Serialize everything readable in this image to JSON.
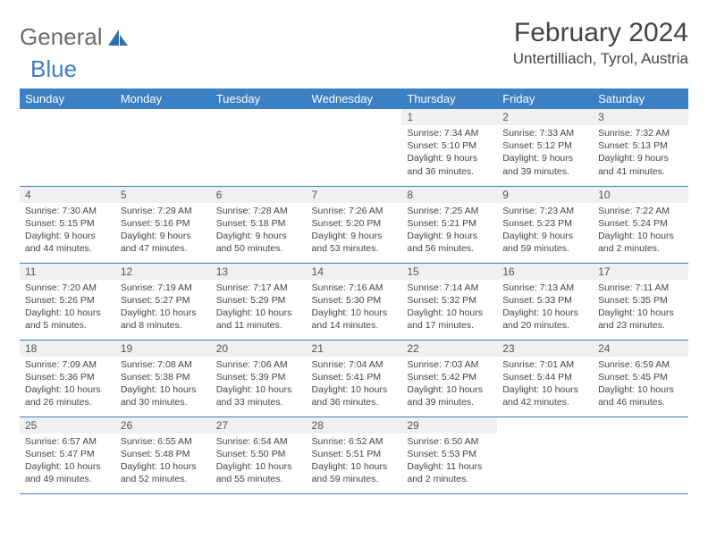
{
  "brand": {
    "word1": "General",
    "word2": "Blue"
  },
  "header": {
    "title": "February 2024",
    "location": "Untertilliach, Tyrol, Austria"
  },
  "colors": {
    "header_bg": "#3b7fc4",
    "header_text": "#ffffff",
    "daynum_bg": "#eef0f1",
    "border": "#3b7fc4",
    "body_text": "#444444",
    "logo_gray": "#6a6a6a",
    "logo_blue": "#3b7fc4"
  },
  "weekdays": [
    "Sunday",
    "Monday",
    "Tuesday",
    "Wednesday",
    "Thursday",
    "Friday",
    "Saturday"
  ],
  "weeks": [
    [
      {
        "n": "",
        "sr": "",
        "ss": "",
        "dl": ""
      },
      {
        "n": "",
        "sr": "",
        "ss": "",
        "dl": ""
      },
      {
        "n": "",
        "sr": "",
        "ss": "",
        "dl": ""
      },
      {
        "n": "",
        "sr": "",
        "ss": "",
        "dl": ""
      },
      {
        "n": "1",
        "sr": "Sunrise: 7:34 AM",
        "ss": "Sunset: 5:10 PM",
        "dl": "Daylight: 9 hours and 36 minutes."
      },
      {
        "n": "2",
        "sr": "Sunrise: 7:33 AM",
        "ss": "Sunset: 5:12 PM",
        "dl": "Daylight: 9 hours and 39 minutes."
      },
      {
        "n": "3",
        "sr": "Sunrise: 7:32 AM",
        "ss": "Sunset: 5:13 PM",
        "dl": "Daylight: 9 hours and 41 minutes."
      }
    ],
    [
      {
        "n": "4",
        "sr": "Sunrise: 7:30 AM",
        "ss": "Sunset: 5:15 PM",
        "dl": "Daylight: 9 hours and 44 minutes."
      },
      {
        "n": "5",
        "sr": "Sunrise: 7:29 AM",
        "ss": "Sunset: 5:16 PM",
        "dl": "Daylight: 9 hours and 47 minutes."
      },
      {
        "n": "6",
        "sr": "Sunrise: 7:28 AM",
        "ss": "Sunset: 5:18 PM",
        "dl": "Daylight: 9 hours and 50 minutes."
      },
      {
        "n": "7",
        "sr": "Sunrise: 7:26 AM",
        "ss": "Sunset: 5:20 PM",
        "dl": "Daylight: 9 hours and 53 minutes."
      },
      {
        "n": "8",
        "sr": "Sunrise: 7:25 AM",
        "ss": "Sunset: 5:21 PM",
        "dl": "Daylight: 9 hours and 56 minutes."
      },
      {
        "n": "9",
        "sr": "Sunrise: 7:23 AM",
        "ss": "Sunset: 5:23 PM",
        "dl": "Daylight: 9 hours and 59 minutes."
      },
      {
        "n": "10",
        "sr": "Sunrise: 7:22 AM",
        "ss": "Sunset: 5:24 PM",
        "dl": "Daylight: 10 hours and 2 minutes."
      }
    ],
    [
      {
        "n": "11",
        "sr": "Sunrise: 7:20 AM",
        "ss": "Sunset: 5:26 PM",
        "dl": "Daylight: 10 hours and 5 minutes."
      },
      {
        "n": "12",
        "sr": "Sunrise: 7:19 AM",
        "ss": "Sunset: 5:27 PM",
        "dl": "Daylight: 10 hours and 8 minutes."
      },
      {
        "n": "13",
        "sr": "Sunrise: 7:17 AM",
        "ss": "Sunset: 5:29 PM",
        "dl": "Daylight: 10 hours and 11 minutes."
      },
      {
        "n": "14",
        "sr": "Sunrise: 7:16 AM",
        "ss": "Sunset: 5:30 PM",
        "dl": "Daylight: 10 hours and 14 minutes."
      },
      {
        "n": "15",
        "sr": "Sunrise: 7:14 AM",
        "ss": "Sunset: 5:32 PM",
        "dl": "Daylight: 10 hours and 17 minutes."
      },
      {
        "n": "16",
        "sr": "Sunrise: 7:13 AM",
        "ss": "Sunset: 5:33 PM",
        "dl": "Daylight: 10 hours and 20 minutes."
      },
      {
        "n": "17",
        "sr": "Sunrise: 7:11 AM",
        "ss": "Sunset: 5:35 PM",
        "dl": "Daylight: 10 hours and 23 minutes."
      }
    ],
    [
      {
        "n": "18",
        "sr": "Sunrise: 7:09 AM",
        "ss": "Sunset: 5:36 PM",
        "dl": "Daylight: 10 hours and 26 minutes."
      },
      {
        "n": "19",
        "sr": "Sunrise: 7:08 AM",
        "ss": "Sunset: 5:38 PM",
        "dl": "Daylight: 10 hours and 30 minutes."
      },
      {
        "n": "20",
        "sr": "Sunrise: 7:06 AM",
        "ss": "Sunset: 5:39 PM",
        "dl": "Daylight: 10 hours and 33 minutes."
      },
      {
        "n": "21",
        "sr": "Sunrise: 7:04 AM",
        "ss": "Sunset: 5:41 PM",
        "dl": "Daylight: 10 hours and 36 minutes."
      },
      {
        "n": "22",
        "sr": "Sunrise: 7:03 AM",
        "ss": "Sunset: 5:42 PM",
        "dl": "Daylight: 10 hours and 39 minutes."
      },
      {
        "n": "23",
        "sr": "Sunrise: 7:01 AM",
        "ss": "Sunset: 5:44 PM",
        "dl": "Daylight: 10 hours and 42 minutes."
      },
      {
        "n": "24",
        "sr": "Sunrise: 6:59 AM",
        "ss": "Sunset: 5:45 PM",
        "dl": "Daylight: 10 hours and 46 minutes."
      }
    ],
    [
      {
        "n": "25",
        "sr": "Sunrise: 6:57 AM",
        "ss": "Sunset: 5:47 PM",
        "dl": "Daylight: 10 hours and 49 minutes."
      },
      {
        "n": "26",
        "sr": "Sunrise: 6:55 AM",
        "ss": "Sunset: 5:48 PM",
        "dl": "Daylight: 10 hours and 52 minutes."
      },
      {
        "n": "27",
        "sr": "Sunrise: 6:54 AM",
        "ss": "Sunset: 5:50 PM",
        "dl": "Daylight: 10 hours and 55 minutes."
      },
      {
        "n": "28",
        "sr": "Sunrise: 6:52 AM",
        "ss": "Sunset: 5:51 PM",
        "dl": "Daylight: 10 hours and 59 minutes."
      },
      {
        "n": "29",
        "sr": "Sunrise: 6:50 AM",
        "ss": "Sunset: 5:53 PM",
        "dl": "Daylight: 11 hours and 2 minutes."
      },
      {
        "n": "",
        "sr": "",
        "ss": "",
        "dl": ""
      },
      {
        "n": "",
        "sr": "",
        "ss": "",
        "dl": ""
      }
    ]
  ]
}
